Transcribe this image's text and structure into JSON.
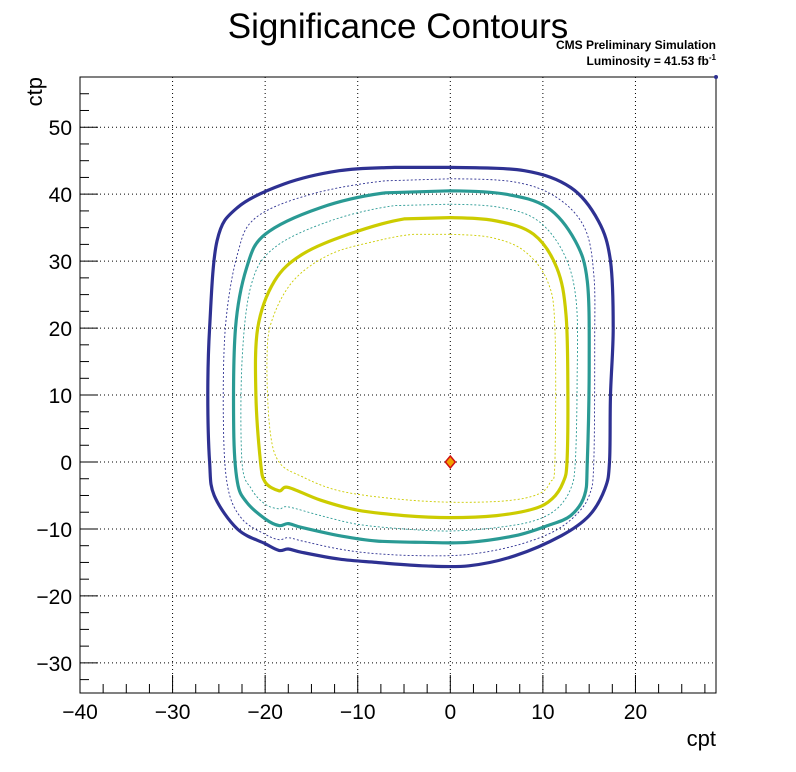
{
  "chart_data": {
    "type": "line",
    "title": "Significance Contours",
    "xlabel": "cpt",
    "ylabel": "ctp",
    "xlim": [
      -40,
      28.7
    ],
    "ylim": [
      -34.5,
      57.5
    ],
    "x_ticks": [
      -40,
      -30,
      -20,
      -10,
      0,
      10,
      20
    ],
    "x_tick_labels": [
      "−40",
      "−30",
      "−20",
      "−10",
      "0",
      "10",
      "20"
    ],
    "y_ticks": [
      -30,
      -20,
      -10,
      0,
      10,
      20,
      30,
      40,
      50
    ],
    "y_tick_labels": [
      "−30",
      "−20",
      "−10",
      "0",
      "10",
      "20",
      "30",
      "40",
      "50"
    ],
    "grid": true,
    "annotations": {
      "line1": "CMS Preliminary Simulation",
      "line2_prefix": "Luminosity = 41.53 fb",
      "line2_sup": "-1"
    },
    "colors": {
      "outer": "#2e3192",
      "middle": "#2a9a94",
      "inner": "#cccc00",
      "marker_fill": "#f2a100",
      "marker_edge": "#d01010"
    },
    "series": [
      {
        "style": "thick",
        "color": "#2e3192",
        "x": [
          0,
          8,
          13,
          16,
          17.3,
          17.6,
          17.3,
          17.2,
          16.7,
          15,
          12,
          7,
          2,
          -3,
          -8,
          -12,
          -16,
          -17.5,
          -18.5,
          -20,
          -23,
          -25.5,
          -26,
          -26.2,
          -26,
          -25.2,
          -23,
          -18,
          -12,
          -6,
          0
        ],
        "y": [
          44,
          43.5,
          41,
          36,
          30,
          20,
          10,
          0,
          -4,
          -8,
          -11,
          -14,
          -15.5,
          -15.5,
          -15,
          -14.5,
          -13.5,
          -13,
          -13.2,
          -12.2,
          -10,
          -5,
          0,
          10,
          20,
          33,
          38,
          41.5,
          43.5,
          44,
          44
        ]
      },
      {
        "style": "thin",
        "color": "#2e3192",
        "x": [
          0,
          7,
          11.5,
          14.5,
          15.5,
          15.6,
          15.5,
          15,
          13.5,
          11,
          7,
          2,
          -3,
          -8,
          -12,
          -16,
          -17.5,
          -18.5,
          -20,
          -22.5,
          -24,
          -24.5,
          -24.3,
          -23,
          -21,
          -15,
          -7,
          0
        ],
        "y": [
          42.3,
          41.8,
          39.5,
          35,
          28,
          18,
          0,
          -5,
          -8,
          -10.5,
          -12.5,
          -13.8,
          -14,
          -13.7,
          -13,
          -11.8,
          -11.3,
          -11.6,
          -10.8,
          -8.5,
          -4,
          5,
          20,
          31,
          36.5,
          40,
          42,
          42.3
        ]
      },
      {
        "style": "thick",
        "color": "#2a9a94",
        "x": [
          0,
          6,
          10.5,
          13.5,
          14.8,
          15,
          14.8,
          14.5,
          13,
          10.5,
          7,
          2,
          -3,
          -8,
          -12,
          -16,
          -17.5,
          -18.5,
          -20,
          -22,
          -23,
          -23.4,
          -23.2,
          -22,
          -20,
          -14,
          -7,
          0
        ],
        "y": [
          40.5,
          40,
          38,
          33,
          27,
          15,
          0,
          -5,
          -8,
          -9.5,
          -11,
          -12,
          -12,
          -11.8,
          -11,
          -9.8,
          -9.2,
          -9.5,
          -8.5,
          -6,
          -3,
          5,
          20,
          29,
          34,
          38,
          40.2,
          40.5
        ]
      },
      {
        "style": "thin",
        "color": "#2a9a94",
        "x": [
          0,
          5.5,
          9.5,
          12.3,
          13.6,
          13.7,
          13.5,
          13,
          11.5,
          9,
          5,
          0,
          -5,
          -10,
          -14,
          -17.5,
          -18.5,
          -20,
          -21.5,
          -22.5,
          -22.5,
          -21.5,
          -19,
          -13,
          -6,
          0
        ],
        "y": [
          38.5,
          38,
          36,
          31,
          24,
          12,
          0,
          -4,
          -7,
          -8.8,
          -9.8,
          -10.3,
          -10,
          -9.3,
          -8,
          -6.7,
          -7,
          -6.3,
          -4,
          0,
          15,
          26.5,
          32,
          36,
          38.3,
          38.5
        ]
      },
      {
        "style": "thick",
        "color": "#cccc00",
        "x": [
          0,
          5,
          9,
          11.5,
          12.5,
          12.7,
          12.6,
          12.2,
          11,
          9,
          5,
          0,
          -5,
          -10,
          -14,
          -17.5,
          -18.5,
          -20,
          -20.5,
          -21,
          -20.8,
          -19,
          -16,
          -11,
          -5,
          0
        ],
        "y": [
          36.5,
          36,
          34,
          29,
          22,
          10,
          0,
          -3,
          -5.5,
          -7,
          -8,
          -8.3,
          -8,
          -7.2,
          -5.7,
          -3.8,
          -4.3,
          -3,
          0,
          10,
          20,
          27,
          31,
          34,
          36.3,
          36.5
        ]
      },
      {
        "style": "thin",
        "color": "#cccc00",
        "x": [
          0,
          4.5,
          8,
          10.5,
          11.3,
          11.3,
          10.8,
          9.5,
          6,
          0,
          -6,
          -12,
          -16,
          -18.5,
          -19.5,
          -19.8,
          -19.3,
          -17,
          -13,
          -8,
          -4,
          0
        ],
        "y": [
          34,
          33.5,
          31.5,
          27,
          20,
          0,
          -3,
          -4.8,
          -5.8,
          -6,
          -5.5,
          -4.3,
          -2.2,
          0,
          5,
          15,
          21,
          27,
          31,
          33,
          34,
          34
        ]
      }
    ],
    "best_fit_point": {
      "x": 0,
      "y": 0
    }
  }
}
